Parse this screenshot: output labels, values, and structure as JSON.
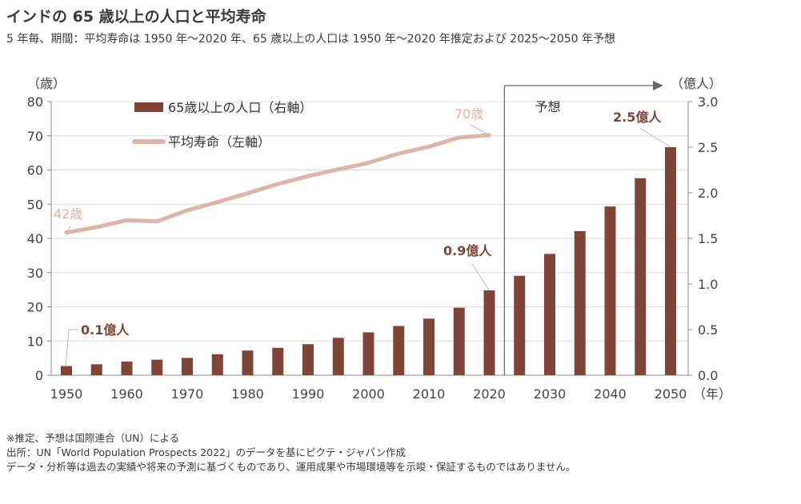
{
  "header": {
    "title": "インドの 65 歳以上の人口と平均寿命",
    "subtitle": "5 年毎、期間：平均寿命は 1950 年～2020 年、65 歳以上の人口は 1950 年～2020 年推定および 2025～2050 年予想"
  },
  "footnotes": [
    "※推定、予想は国際連合（UN）による",
    "出所：UN「World Population Prospects 2022」のデータを基にピクテ・ジャパン作成",
    "データ・分析等は過去の実績や将来の予測に基づくものであり、運用成果や市場環境等を示唆・保証するものではありません。"
  ],
  "colors": {
    "bar": "#7f4538",
    "line": "#dcb4aa",
    "grid": "#dddddd",
    "axis": "#888888"
  },
  "chart_data": {
    "type": "bar+line",
    "title": "インドの 65 歳以上の人口と平均寿命",
    "categories": [
      1950,
      1955,
      1960,
      1965,
      1970,
      1975,
      1980,
      1985,
      1990,
      1995,
      2000,
      2005,
      2010,
      2015,
      2020,
      2025,
      2030,
      2035,
      2040,
      2045,
      2050
    ],
    "x_tick_labels": [
      "1950",
      "1960",
      "1970",
      "1980",
      "1990",
      "2000",
      "2010",
      "2020",
      "2030",
      "2040",
      "2050"
    ],
    "x_unit": "（年）",
    "series": [
      {
        "name": "65歳以上の人口（右軸）",
        "type": "bar",
        "axis": "right",
        "unit": "億人",
        "values": [
          0.1,
          0.12,
          0.15,
          0.17,
          0.19,
          0.23,
          0.27,
          0.3,
          0.34,
          0.41,
          0.47,
          0.54,
          0.62,
          0.74,
          0.93,
          1.09,
          1.33,
          1.58,
          1.85,
          2.16,
          2.5
        ]
      },
      {
        "name": "平均寿命（左軸）",
        "type": "line",
        "axis": "left",
        "unit": "歳",
        "values": [
          41.7,
          43.3,
          45.3,
          45.0,
          48.2,
          50.6,
          53.2,
          55.9,
          58.2,
          60.2,
          62.1,
          64.8,
          66.8,
          69.5,
          70.2,
          null,
          null,
          null,
          null,
          null,
          null
        ]
      }
    ],
    "left_axis": {
      "label": "（歳）",
      "range": [
        0,
        80
      ],
      "ticks": [
        "0",
        "10",
        "20",
        "30",
        "40",
        "50",
        "60",
        "70",
        "80"
      ]
    },
    "right_axis": {
      "label": "（億人）",
      "range": [
        0,
        3.0
      ],
      "ticks": [
        "0.0",
        "0.5",
        "1.0",
        "1.5",
        "2.0",
        "2.5",
        "3.0"
      ]
    },
    "grid": true,
    "legend": {
      "placement": "top-left-inside",
      "items": [
        "65歳以上の人口（右軸）",
        "平均寿命（左軸）"
      ]
    },
    "annotations": [
      {
        "text": "42歳",
        "series": "line",
        "category": 1950
      },
      {
        "text": "70歳",
        "series": "line",
        "category": 2020
      },
      {
        "text": "0.1億人",
        "series": "bar",
        "category": 1950
      },
      {
        "text": "0.9億人",
        "series": "bar",
        "category": 2020
      },
      {
        "text": "2.5億人",
        "series": "bar",
        "category": 2050
      }
    ],
    "forecast": {
      "label": "予想",
      "from": 2025
    }
  }
}
